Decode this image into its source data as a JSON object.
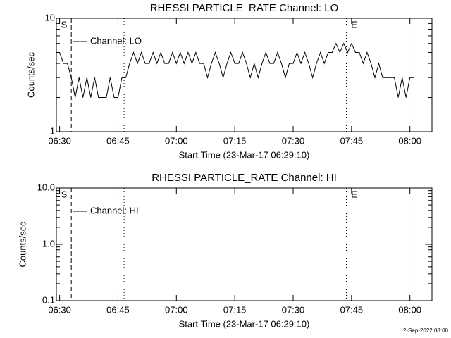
{
  "chart_data": [
    {
      "type": "line",
      "title": "RHESSI PARTICLE_RATE Channel: LO",
      "xlabel": "Start Time (23-Mar-17 06:29:10)",
      "ylabel": "Counts/sec",
      "xlim": [
        "06:29:10",
        "08:05:40"
      ],
      "xticks": [
        "06:30",
        "06:45",
        "07:00",
        "07:15",
        "07:30",
        "07:45",
        "08:00"
      ],
      "ylim": [
        1,
        10
      ],
      "yticks": [
        1,
        10
      ],
      "log_y": true,
      "legend": "top-left",
      "markers": [
        {
          "x": "06:33:00",
          "style": "dashed"
        },
        {
          "x": "06:46:34",
          "style": "dotted"
        },
        {
          "x": "07:43:40",
          "style": "dotted"
        },
        {
          "x": "08:00:30",
          "style": "dotted"
        }
      ],
      "annotations": [
        {
          "text": "S",
          "x": "06:30:00"
        },
        {
          "text": "E",
          "x": "07:44:30"
        }
      ],
      "series": [
        {
          "name": "Channel: LO",
          "color": "#000000",
          "x": [
            "06:30",
            "06:31",
            "06:32",
            "06:33",
            "06:34",
            "06:35",
            "06:36",
            "06:37",
            "06:38",
            "06:39",
            "06:40",
            "06:41",
            "06:42",
            "06:43",
            "06:44",
            "06:45",
            "06:46",
            "06:47",
            "06:48",
            "06:49",
            "06:50",
            "06:51",
            "06:52",
            "06:53",
            "06:54",
            "06:55",
            "06:56",
            "06:57",
            "06:58",
            "06:59",
            "07:00",
            "07:01",
            "07:02",
            "07:03",
            "07:04",
            "07:05",
            "07:06",
            "07:07",
            "07:08",
            "07:09",
            "07:10",
            "07:11",
            "07:12",
            "07:13",
            "07:14",
            "07:15",
            "07:16",
            "07:17",
            "07:18",
            "07:19",
            "07:20",
            "07:21",
            "07:22",
            "07:23",
            "07:24",
            "07:25",
            "07:26",
            "07:27",
            "07:28",
            "07:29",
            "07:30",
            "07:31",
            "07:32",
            "07:33",
            "07:34",
            "07:35",
            "07:36",
            "07:37",
            "07:38",
            "07:39",
            "07:40",
            "07:41",
            "07:42",
            "07:43",
            "07:44",
            "07:45",
            "07:46",
            "07:47",
            "07:48",
            "07:49",
            "07:50",
            "07:51",
            "07:52",
            "07:53",
            "07:54",
            "07:55",
            "07:56",
            "07:57",
            "07:58",
            "07:59",
            "08:00",
            "08:01"
          ],
          "values": [
            5,
            4,
            4,
            3,
            2,
            3,
            2,
            3,
            2,
            3,
            2,
            2,
            2,
            3,
            2,
            2,
            3,
            3,
            4,
            5,
            4,
            5,
            4,
            4,
            5,
            4,
            5,
            4,
            4,
            5,
            4,
            5,
            4,
            5,
            4,
            5,
            4,
            4,
            3,
            4,
            5,
            4,
            3,
            4,
            5,
            4,
            4,
            5,
            4,
            3,
            4,
            3,
            4,
            5,
            4,
            4,
            5,
            4,
            3,
            4,
            4,
            5,
            4,
            5,
            4,
            3,
            4,
            5,
            4,
            5,
            5,
            6,
            5,
            6,
            5,
            6,
            5,
            5,
            4,
            5,
            4,
            3,
            4,
            3,
            3,
            3,
            3,
            2,
            3,
            2,
            3,
            3
          ]
        }
      ]
    },
    {
      "type": "line",
      "title": "RHESSI PARTICLE_RATE Channel: HI",
      "xlabel": "Start Time (23-Mar-17 06:29:10)",
      "ylabel": "Counts/sec",
      "xlim": [
        "06:29:10",
        "08:05:40"
      ],
      "xticks": [
        "06:30",
        "06:45",
        "07:00",
        "07:15",
        "07:30",
        "07:45",
        "08:00"
      ],
      "ylim": [
        0.1,
        10
      ],
      "yticks": [
        0.1,
        {
          "value": 1,
          "label": "1.0"
        },
        {
          "value": 10,
          "label": "10.0"
        }
      ],
      "log_y": true,
      "legend": "top-left",
      "markers": [
        {
          "x": "06:33:00",
          "style": "dashed"
        },
        {
          "x": "06:46:34",
          "style": "dotted"
        },
        {
          "x": "07:43:40",
          "style": "dotted"
        },
        {
          "x": "08:00:30",
          "style": "dotted"
        }
      ],
      "annotations": [
        {
          "text": "S",
          "x": "06:30:00"
        },
        {
          "text": "E",
          "x": "07:44:30"
        }
      ],
      "series": [
        {
          "name": "Channel: HI",
          "color": "#000000",
          "x": [],
          "values": []
        }
      ]
    }
  ],
  "footer": "2-Sep-2022 08:00"
}
